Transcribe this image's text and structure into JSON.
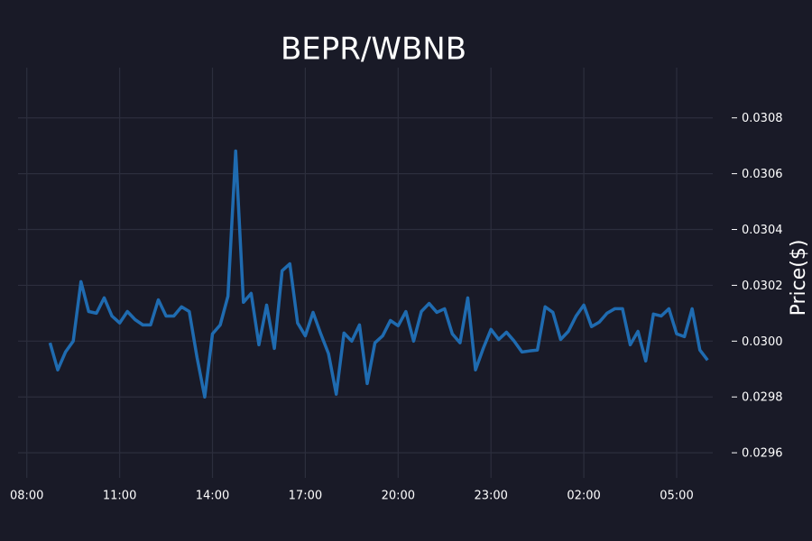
{
  "chart_data": {
    "type": "line",
    "title": "BEPR/WBNB",
    "y_label": "Price($)",
    "x": [
      "08:45",
      "09:00",
      "09:15",
      "09:30",
      "09:45",
      "10:00",
      "10:15",
      "10:30",
      "10:45",
      "11:00",
      "11:15",
      "11:30",
      "11:45",
      "12:00",
      "12:15",
      "12:30",
      "12:45",
      "13:00",
      "13:15",
      "13:30",
      "13:45",
      "14:00",
      "14:15",
      "14:30",
      "14:45",
      "15:00",
      "15:15",
      "15:30",
      "15:45",
      "16:00",
      "16:15",
      "16:30",
      "16:45",
      "17:00",
      "17:15",
      "17:30",
      "17:45",
      "18:00",
      "18:15",
      "18:30",
      "18:45",
      "19:00",
      "19:15",
      "19:30",
      "19:45",
      "20:00",
      "20:15",
      "20:30",
      "20:45",
      "21:00",
      "21:15",
      "21:30",
      "21:45",
      "22:00",
      "22:15",
      "22:30",
      "22:45",
      "23:00",
      "23:15",
      "23:30",
      "23:45",
      "00:00",
      "00:15",
      "00:30",
      "00:45",
      "01:00",
      "01:15",
      "01:30",
      "01:45",
      "02:00",
      "02:15",
      "02:30",
      "02:45",
      "03:00",
      "03:15",
      "03:30",
      "03:45",
      "04:00",
      "04:15",
      "04:30",
      "04:45",
      "05:00",
      "05:15",
      "05:30",
      "05:45",
      "06:00"
    ],
    "series": [
      {
        "name": "BEPR/WBNB",
        "color": "#1f6bb0",
        "values": [
          0.029994,
          0.029897,
          0.029961,
          0.03,
          0.030213,
          0.030106,
          0.0301,
          0.030155,
          0.03009,
          0.030065,
          0.030106,
          0.030077,
          0.030058,
          0.030058,
          0.030148,
          0.03009,
          0.03009,
          0.030123,
          0.030106,
          0.029942,
          0.0298,
          0.030026,
          0.030058,
          0.030161,
          0.030681,
          0.030139,
          0.030171,
          0.029987,
          0.030129,
          0.029974,
          0.030252,
          0.030277,
          0.030065,
          0.030019,
          0.030103,
          0.030026,
          0.029955,
          0.02981,
          0.030029,
          0.03,
          0.030058,
          0.029848,
          0.029994,
          0.030019,
          0.030074,
          0.030055,
          0.030106,
          0.03,
          0.030106,
          0.030135,
          0.030103,
          0.030116,
          0.030026,
          0.029994,
          0.030155,
          0.029897,
          0.029974,
          0.030042,
          0.030006,
          0.030032,
          0.03,
          0.029961,
          0.029965,
          0.029968,
          0.030123,
          0.030103,
          0.030006,
          0.030035,
          0.03009,
          0.030129,
          0.030052,
          0.030068,
          0.0301,
          0.030116,
          0.030116,
          0.029987,
          0.030035,
          0.029929,
          0.030097,
          0.03009,
          0.030116,
          0.030026,
          0.030016,
          0.030116,
          0.029968,
          0.029932
        ]
      }
    ],
    "xlim": [
      "07:43",
      "06:10"
    ],
    "xticks": [
      "08:00",
      "11:00",
      "14:00",
      "17:00",
      "20:00",
      "23:00",
      "02:00",
      "05:00"
    ],
    "ylim": [
      0.02951,
      0.03098
    ],
    "yticks": [
      0.0296,
      0.0298,
      {
        "value": 0.03,
        "label": "0.0300"
      },
      0.0302,
      0.0304,
      0.0306,
      0.0308
    ],
    "grid": true
  }
}
